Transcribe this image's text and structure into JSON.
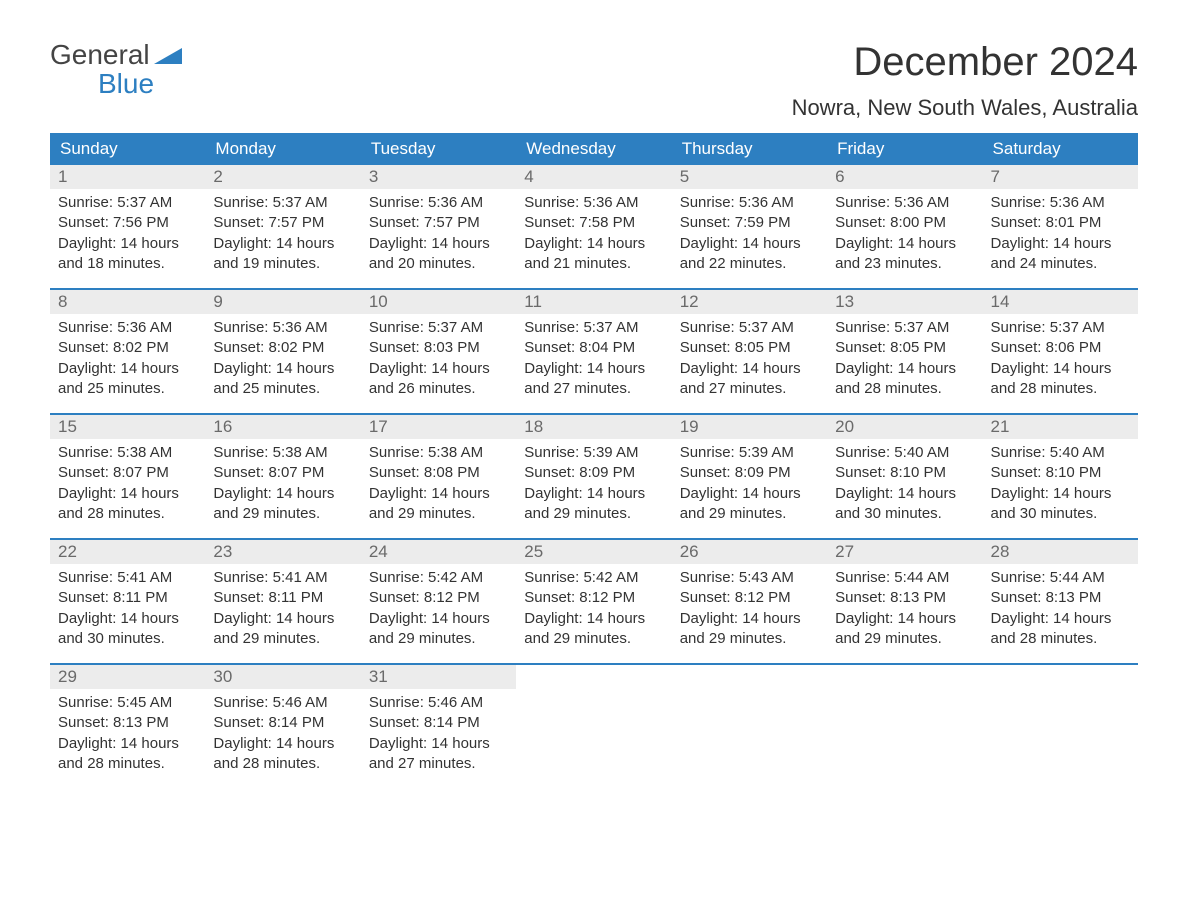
{
  "brand": {
    "word1": "General",
    "word2": "Blue",
    "accent_color": "#2d7fc1",
    "text_color": "#444444"
  },
  "title": "December 2024",
  "location": "Nowra, New South Wales, Australia",
  "colors": {
    "header_bg": "#2d7fc1",
    "header_text": "#ffffff",
    "daynum_bg": "#ececec",
    "daynum_text": "#6a6a6a",
    "body_text": "#333333",
    "week_divider": "#2d7fc1",
    "page_bg": "#ffffff"
  },
  "fonts": {
    "title_size_pt": 30,
    "location_size_pt": 17,
    "dow_size_pt": 13,
    "body_size_pt": 11
  },
  "day_labels": [
    "Sunday",
    "Monday",
    "Tuesday",
    "Wednesday",
    "Thursday",
    "Friday",
    "Saturday"
  ],
  "days": [
    {
      "n": "1",
      "sunrise": "5:37 AM",
      "sunset": "7:56 PM",
      "dl1": "14 hours",
      "dl2": "and 18 minutes."
    },
    {
      "n": "2",
      "sunrise": "5:37 AM",
      "sunset": "7:57 PM",
      "dl1": "14 hours",
      "dl2": "and 19 minutes."
    },
    {
      "n": "3",
      "sunrise": "5:36 AM",
      "sunset": "7:57 PM",
      "dl1": "14 hours",
      "dl2": "and 20 minutes."
    },
    {
      "n": "4",
      "sunrise": "5:36 AM",
      "sunset": "7:58 PM",
      "dl1": "14 hours",
      "dl2": "and 21 minutes."
    },
    {
      "n": "5",
      "sunrise": "5:36 AM",
      "sunset": "7:59 PM",
      "dl1": "14 hours",
      "dl2": "and 22 minutes."
    },
    {
      "n": "6",
      "sunrise": "5:36 AM",
      "sunset": "8:00 PM",
      "dl1": "14 hours",
      "dl2": "and 23 minutes."
    },
    {
      "n": "7",
      "sunrise": "5:36 AM",
      "sunset": "8:01 PM",
      "dl1": "14 hours",
      "dl2": "and 24 minutes."
    },
    {
      "n": "8",
      "sunrise": "5:36 AM",
      "sunset": "8:02 PM",
      "dl1": "14 hours",
      "dl2": "and 25 minutes."
    },
    {
      "n": "9",
      "sunrise": "5:36 AM",
      "sunset": "8:02 PM",
      "dl1": "14 hours",
      "dl2": "and 25 minutes."
    },
    {
      "n": "10",
      "sunrise": "5:37 AM",
      "sunset": "8:03 PM",
      "dl1": "14 hours",
      "dl2": "and 26 minutes."
    },
    {
      "n": "11",
      "sunrise": "5:37 AM",
      "sunset": "8:04 PM",
      "dl1": "14 hours",
      "dl2": "and 27 minutes."
    },
    {
      "n": "12",
      "sunrise": "5:37 AM",
      "sunset": "8:05 PM",
      "dl1": "14 hours",
      "dl2": "and 27 minutes."
    },
    {
      "n": "13",
      "sunrise": "5:37 AM",
      "sunset": "8:05 PM",
      "dl1": "14 hours",
      "dl2": "and 28 minutes."
    },
    {
      "n": "14",
      "sunrise": "5:37 AM",
      "sunset": "8:06 PM",
      "dl1": "14 hours",
      "dl2": "and 28 minutes."
    },
    {
      "n": "15",
      "sunrise": "5:38 AM",
      "sunset": "8:07 PM",
      "dl1": "14 hours",
      "dl2": "and 28 minutes."
    },
    {
      "n": "16",
      "sunrise": "5:38 AM",
      "sunset": "8:07 PM",
      "dl1": "14 hours",
      "dl2": "and 29 minutes."
    },
    {
      "n": "17",
      "sunrise": "5:38 AM",
      "sunset": "8:08 PM",
      "dl1": "14 hours",
      "dl2": "and 29 minutes."
    },
    {
      "n": "18",
      "sunrise": "5:39 AM",
      "sunset": "8:09 PM",
      "dl1": "14 hours",
      "dl2": "and 29 minutes."
    },
    {
      "n": "19",
      "sunrise": "5:39 AM",
      "sunset": "8:09 PM",
      "dl1": "14 hours",
      "dl2": "and 29 minutes."
    },
    {
      "n": "20",
      "sunrise": "5:40 AM",
      "sunset": "8:10 PM",
      "dl1": "14 hours",
      "dl2": "and 30 minutes."
    },
    {
      "n": "21",
      "sunrise": "5:40 AM",
      "sunset": "8:10 PM",
      "dl1": "14 hours",
      "dl2": "and 30 minutes."
    },
    {
      "n": "22",
      "sunrise": "5:41 AM",
      "sunset": "8:11 PM",
      "dl1": "14 hours",
      "dl2": "and 30 minutes."
    },
    {
      "n": "23",
      "sunrise": "5:41 AM",
      "sunset": "8:11 PM",
      "dl1": "14 hours",
      "dl2": "and 29 minutes."
    },
    {
      "n": "24",
      "sunrise": "5:42 AM",
      "sunset": "8:12 PM",
      "dl1": "14 hours",
      "dl2": "and 29 minutes."
    },
    {
      "n": "25",
      "sunrise": "5:42 AM",
      "sunset": "8:12 PM",
      "dl1": "14 hours",
      "dl2": "and 29 minutes."
    },
    {
      "n": "26",
      "sunrise": "5:43 AM",
      "sunset": "8:12 PM",
      "dl1": "14 hours",
      "dl2": "and 29 minutes."
    },
    {
      "n": "27",
      "sunrise": "5:44 AM",
      "sunset": "8:13 PM",
      "dl1": "14 hours",
      "dl2": "and 29 minutes."
    },
    {
      "n": "28",
      "sunrise": "5:44 AM",
      "sunset": "8:13 PM",
      "dl1": "14 hours",
      "dl2": "and 28 minutes."
    },
    {
      "n": "29",
      "sunrise": "5:45 AM",
      "sunset": "8:13 PM",
      "dl1": "14 hours",
      "dl2": "and 28 minutes."
    },
    {
      "n": "30",
      "sunrise": "5:46 AM",
      "sunset": "8:14 PM",
      "dl1": "14 hours",
      "dl2": "and 28 minutes."
    },
    {
      "n": "31",
      "sunrise": "5:46 AM",
      "sunset": "8:14 PM",
      "dl1": "14 hours",
      "dl2": "and 27 minutes."
    }
  ],
  "labels": {
    "sunrise": "Sunrise: ",
    "sunset": "Sunset: ",
    "daylight": "Daylight: "
  },
  "layout": {
    "columns": 7,
    "rows": 5,
    "start_offset": 0,
    "trailing_empty": 4
  }
}
